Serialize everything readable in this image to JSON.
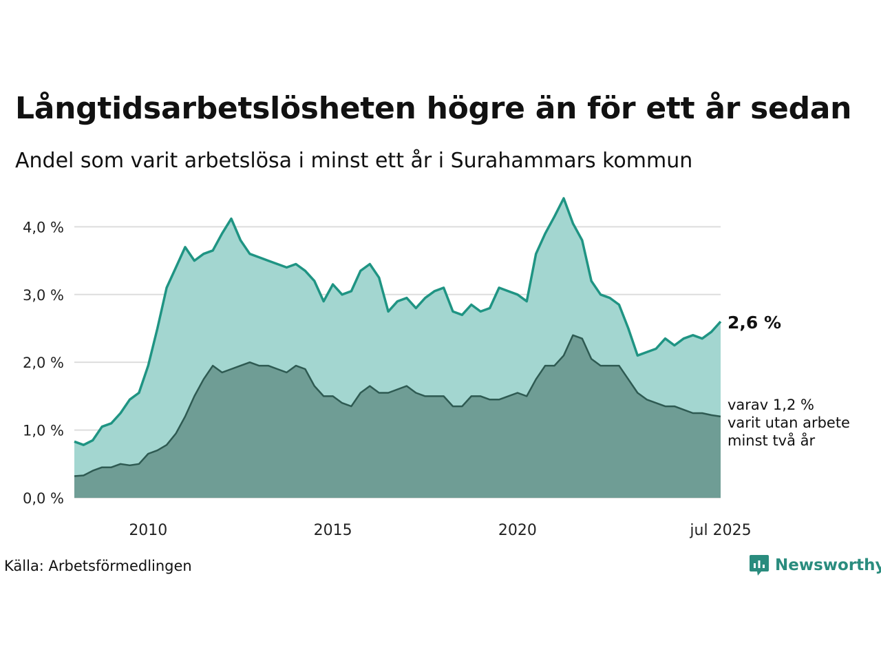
{
  "header": {
    "title": "Långtidsarbetslösheten högre än för ett år sedan",
    "subtitle": "Andel som varit arbetslösa i minst ett år i Surahammars kommun"
  },
  "footer": {
    "source": "Källa: Arbetsförmedlingen",
    "brand": "Newsworthy",
    "brand_icon": "newsworthy-logo-icon"
  },
  "colors": {
    "series1_line": "#1f9483",
    "series1_fill": "#a3d6d0",
    "series2_line": "#2e5a52",
    "series2_fill": "#6f9d95",
    "grid": "#dddddd",
    "brand": "#2a8c7e"
  },
  "chart_data": {
    "type": "area",
    "x_start": "2008-01",
    "x_end": "2025-07",
    "ylim": [
      0,
      4.4
    ],
    "grid": true,
    "y_ticks": [
      {
        "value": 0,
        "label": "0,0 %"
      },
      {
        "value": 1,
        "label": "1,0 %"
      },
      {
        "value": 2,
        "label": "2,0 %"
      },
      {
        "value": 3,
        "label": "3,0 %"
      },
      {
        "value": 4,
        "label": "4,0 %"
      }
    ],
    "x_ticks": [
      {
        "value": "2010-01",
        "label": "2010"
      },
      {
        "value": "2015-01",
        "label": "2015"
      },
      {
        "value": "2020-01",
        "label": "2020"
      },
      {
        "value": "2025-07",
        "label": "jul 2025"
      }
    ],
    "end_labels": {
      "series1": "2,6 %",
      "series2_lines": [
        "varav 1,2 %",
        "varit utan arbete",
        "minst två år"
      ]
    },
    "series": [
      {
        "key": "series1",
        "points": [
          [
            "2008-01",
            0.83
          ],
          [
            "2008-04",
            0.78
          ],
          [
            "2008-07",
            0.85
          ],
          [
            "2008-10",
            1.05
          ],
          [
            "2009-01",
            1.1
          ],
          [
            "2009-04",
            1.25
          ],
          [
            "2009-07",
            1.45
          ],
          [
            "2009-10",
            1.55
          ],
          [
            "2010-01",
            1.95
          ],
          [
            "2010-04",
            2.5
          ],
          [
            "2010-07",
            3.1
          ],
          [
            "2010-10",
            3.4
          ],
          [
            "2011-01",
            3.7
          ],
          [
            "2011-04",
            3.5
          ],
          [
            "2011-07",
            3.6
          ],
          [
            "2011-10",
            3.65
          ],
          [
            "2012-01",
            3.9
          ],
          [
            "2012-04",
            4.12
          ],
          [
            "2012-07",
            3.8
          ],
          [
            "2012-10",
            3.6
          ],
          [
            "2013-01",
            3.55
          ],
          [
            "2013-04",
            3.5
          ],
          [
            "2013-07",
            3.45
          ],
          [
            "2013-10",
            3.4
          ],
          [
            "2014-01",
            3.45
          ],
          [
            "2014-04",
            3.35
          ],
          [
            "2014-07",
            3.2
          ],
          [
            "2014-10",
            2.9
          ],
          [
            "2015-01",
            3.15
          ],
          [
            "2015-04",
            3.0
          ],
          [
            "2015-07",
            3.05
          ],
          [
            "2015-10",
            3.35
          ],
          [
            "2016-01",
            3.45
          ],
          [
            "2016-04",
            3.25
          ],
          [
            "2016-07",
            2.75
          ],
          [
            "2016-10",
            2.9
          ],
          [
            "2017-01",
            2.95
          ],
          [
            "2017-04",
            2.8
          ],
          [
            "2017-07",
            2.95
          ],
          [
            "2017-10",
            3.05
          ],
          [
            "2018-01",
            3.1
          ],
          [
            "2018-04",
            2.75
          ],
          [
            "2018-07",
            2.7
          ],
          [
            "2018-10",
            2.85
          ],
          [
            "2019-01",
            2.75
          ],
          [
            "2019-04",
            2.8
          ],
          [
            "2019-07",
            3.1
          ],
          [
            "2019-10",
            3.05
          ],
          [
            "2020-01",
            3.0
          ],
          [
            "2020-04",
            2.9
          ],
          [
            "2020-07",
            3.6
          ],
          [
            "2020-10",
            3.9
          ],
          [
            "2021-01",
            4.15
          ],
          [
            "2021-04",
            4.42
          ],
          [
            "2021-07",
            4.05
          ],
          [
            "2021-10",
            3.8
          ],
          [
            "2022-01",
            3.2
          ],
          [
            "2022-04",
            3.0
          ],
          [
            "2022-07",
            2.95
          ],
          [
            "2022-10",
            2.85
          ],
          [
            "2023-01",
            2.5
          ],
          [
            "2023-04",
            2.1
          ],
          [
            "2023-07",
            2.15
          ],
          [
            "2023-10",
            2.2
          ],
          [
            "2024-01",
            2.35
          ],
          [
            "2024-04",
            2.25
          ],
          [
            "2024-07",
            2.35
          ],
          [
            "2024-10",
            2.4
          ],
          [
            "2025-01",
            2.35
          ],
          [
            "2025-04",
            2.45
          ],
          [
            "2025-07",
            2.6
          ]
        ]
      },
      {
        "key": "series2",
        "points": [
          [
            "2008-01",
            0.32
          ],
          [
            "2008-04",
            0.33
          ],
          [
            "2008-07",
            0.4
          ],
          [
            "2008-10",
            0.45
          ],
          [
            "2009-01",
            0.45
          ],
          [
            "2009-04",
            0.5
          ],
          [
            "2009-07",
            0.48
          ],
          [
            "2009-10",
            0.5
          ],
          [
            "2010-01",
            0.65
          ],
          [
            "2010-04",
            0.7
          ],
          [
            "2010-07",
            0.78
          ],
          [
            "2010-10",
            0.95
          ],
          [
            "2011-01",
            1.2
          ],
          [
            "2011-04",
            1.5
          ],
          [
            "2011-07",
            1.75
          ],
          [
            "2011-10",
            1.95
          ],
          [
            "2012-01",
            1.85
          ],
          [
            "2012-04",
            1.9
          ],
          [
            "2012-07",
            1.95
          ],
          [
            "2012-10",
            2.0
          ],
          [
            "2013-01",
            1.95
          ],
          [
            "2013-04",
            1.95
          ],
          [
            "2013-07",
            1.9
          ],
          [
            "2013-10",
            1.85
          ],
          [
            "2014-01",
            1.95
          ],
          [
            "2014-04",
            1.9
          ],
          [
            "2014-07",
            1.65
          ],
          [
            "2014-10",
            1.5
          ],
          [
            "2015-01",
            1.5
          ],
          [
            "2015-04",
            1.4
          ],
          [
            "2015-07",
            1.35
          ],
          [
            "2015-10",
            1.55
          ],
          [
            "2016-01",
            1.65
          ],
          [
            "2016-04",
            1.55
          ],
          [
            "2016-07",
            1.55
          ],
          [
            "2016-10",
            1.6
          ],
          [
            "2017-01",
            1.65
          ],
          [
            "2017-04",
            1.55
          ],
          [
            "2017-07",
            1.5
          ],
          [
            "2017-10",
            1.5
          ],
          [
            "2018-01",
            1.5
          ],
          [
            "2018-04",
            1.35
          ],
          [
            "2018-07",
            1.35
          ],
          [
            "2018-10",
            1.5
          ],
          [
            "2019-01",
            1.5
          ],
          [
            "2019-04",
            1.45
          ],
          [
            "2019-07",
            1.45
          ],
          [
            "2019-10",
            1.5
          ],
          [
            "2020-01",
            1.55
          ],
          [
            "2020-04",
            1.5
          ],
          [
            "2020-07",
            1.75
          ],
          [
            "2020-10",
            1.95
          ],
          [
            "2021-01",
            1.95
          ],
          [
            "2021-04",
            2.1
          ],
          [
            "2021-07",
            2.4
          ],
          [
            "2021-10",
            2.35
          ],
          [
            "2022-01",
            2.05
          ],
          [
            "2022-04",
            1.95
          ],
          [
            "2022-07",
            1.95
          ],
          [
            "2022-10",
            1.95
          ],
          [
            "2023-01",
            1.75
          ],
          [
            "2023-04",
            1.55
          ],
          [
            "2023-07",
            1.45
          ],
          [
            "2023-10",
            1.4
          ],
          [
            "2024-01",
            1.35
          ],
          [
            "2024-04",
            1.35
          ],
          [
            "2024-07",
            1.3
          ],
          [
            "2024-10",
            1.25
          ],
          [
            "2025-01",
            1.25
          ],
          [
            "2025-04",
            1.22
          ],
          [
            "2025-07",
            1.2
          ]
        ]
      }
    ]
  }
}
